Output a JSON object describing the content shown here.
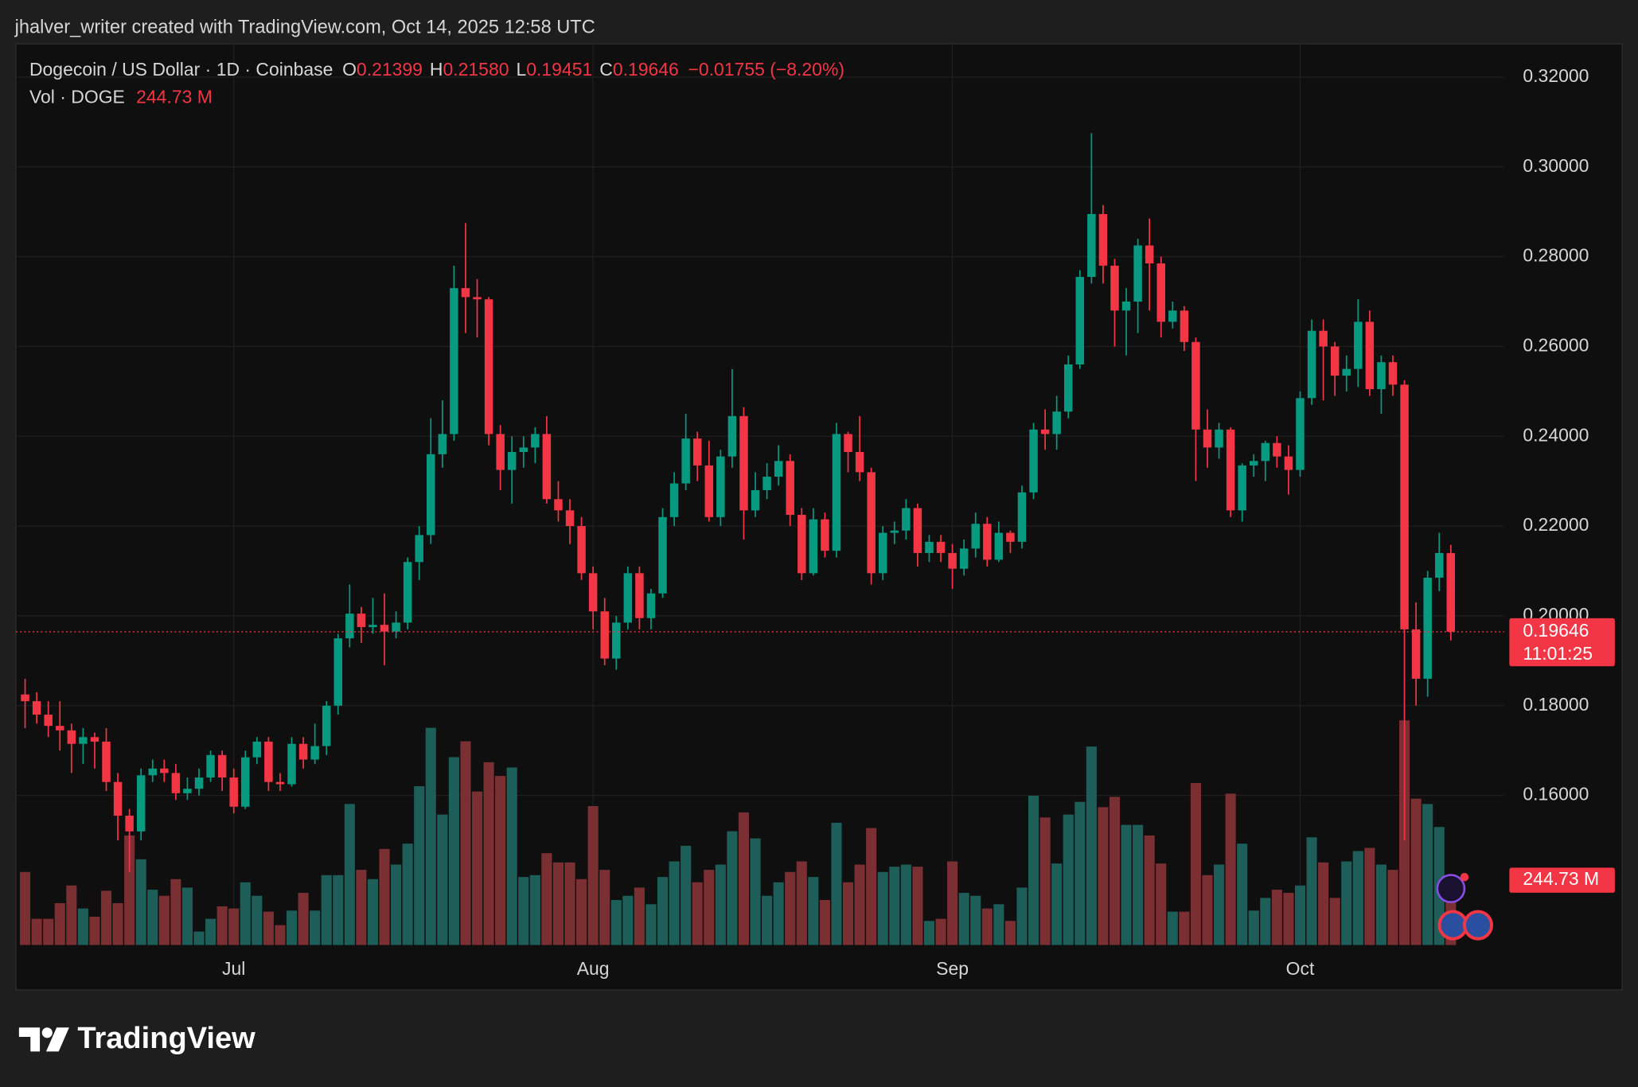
{
  "chart_data": {
    "type": "candlestick",
    "header": "jhalver_writer created with TradingView.com, Oct 14, 2025 12:58 UTC",
    "legend": {
      "symbol": "Dogecoin / US Dollar · 1D · Coinbase",
      "o": "O",
      "open": "0.21399",
      "h": "H",
      "high": "0.21580",
      "l": "L",
      "low": "0.19451",
      "c": "C",
      "close": "0.19646",
      "change": "−0.01755 (−8.20%)",
      "vol_name": "Vol · DOGE",
      "vol": "244.73 M"
    },
    "last_price_label": "0.19646",
    "countdown": "11:01:25",
    "last_volume_label": "244.73 M",
    "footer": "TradingView",
    "up_color": "#089981",
    "down_color": "#f23645",
    "volume_up_color": "#1d5e59",
    "volume_down_color": "#7a2f33",
    "grid": true,
    "xlim": [
      -0.8,
      127.6
    ],
    "xticks": [
      {
        "value": 18,
        "label": "Jul"
      },
      {
        "value": 49,
        "label": "Aug"
      },
      {
        "value": 80,
        "label": "Sep"
      },
      {
        "value": 110,
        "label": "Oct"
      }
    ],
    "ylim": [
      0.1267,
      0.3274
    ],
    "yticks": [
      {
        "value": 0.16,
        "label": "0.16000"
      },
      {
        "value": 0.18,
        "label": "0.18000"
      },
      {
        "value": 0.2,
        "label": "0.20000"
      },
      {
        "value": 0.22,
        "label": "0.22000"
      },
      {
        "value": 0.24,
        "label": "0.24000"
      },
      {
        "value": 0.26,
        "label": "0.26000"
      },
      {
        "value": 0.28,
        "label": "0.28000"
      },
      {
        "value": 0.3,
        "label": "0.30000"
      },
      {
        "value": 0.32,
        "label": "0.32000"
      }
    ],
    "vlim": [
      0,
      3406
    ],
    "open": [
      0.1825,
      0.181,
      0.178,
      0.1755,
      0.1745,
      0.1715,
      0.173,
      0.172,
      0.163,
      0.1555,
      0.152,
      0.1645,
      0.166,
      0.165,
      0.1605,
      0.1615,
      0.164,
      0.169,
      0.164,
      0.1575,
      0.1685,
      0.172,
      0.163,
      0.1625,
      0.1715,
      0.168,
      0.171,
      0.18,
      0.195,
      0.2005,
      0.1975,
      0.198,
      0.1965,
      0.1985,
      0.212,
      0.218,
      0.236,
      0.2405,
      0.273,
      0.271,
      0.2705,
      0.2405,
      0.2325,
      0.2365,
      0.2375,
      0.2405,
      0.226,
      0.2235,
      0.22,
      0.2095,
      0.201,
      0.1905,
      0.1985,
      0.2095,
      0.1995,
      0.205,
      0.222,
      0.2295,
      0.2395,
      0.2335,
      0.222,
      0.2355,
      0.2445,
      0.2235,
      0.228,
      0.231,
      0.2345,
      0.2225,
      0.2095,
      0.2215,
      0.2145,
      0.2405,
      0.2365,
      0.232,
      0.2095,
      0.2185,
      0.219,
      0.224,
      0.214,
      0.2165,
      0.214,
      0.2105,
      0.215,
      0.2205,
      0.2125,
      0.2185,
      0.2165,
      0.2275,
      0.2415,
      0.2405,
      0.2455,
      0.256,
      0.2755,
      0.2895,
      0.278,
      0.268,
      0.27,
      0.2825,
      0.2785,
      0.2655,
      0.268,
      0.261,
      0.2415,
      0.2375,
      0.2415,
      0.2235,
      0.2335,
      0.2345,
      0.2385,
      0.2355,
      0.2325,
      0.2485,
      0.2635,
      0.26,
      0.2535,
      0.255,
      0.2655,
      0.2505,
      0.2565,
      0.2515,
      0.197,
      0.186,
      0.2085,
      0.21399
    ],
    "high": [
      0.186,
      0.183,
      0.181,
      0.181,
      0.176,
      0.175,
      0.174,
      0.175,
      0.165,
      0.157,
      0.166,
      0.168,
      0.168,
      0.167,
      0.164,
      0.166,
      0.17,
      0.17,
      0.166,
      0.17,
      0.173,
      0.173,
      0.165,
      0.173,
      0.173,
      0.176,
      0.181,
      0.196,
      0.207,
      0.202,
      0.204,
      0.205,
      0.201,
      0.213,
      0.22,
      0.244,
      0.248,
      0.278,
      0.2875,
      0.275,
      0.271,
      0.2425,
      0.24,
      0.24,
      0.242,
      0.2445,
      0.23,
      0.226,
      0.222,
      0.211,
      0.204,
      0.2,
      0.211,
      0.211,
      0.206,
      0.224,
      0.232,
      0.245,
      0.241,
      0.239,
      0.237,
      0.255,
      0.2465,
      0.232,
      0.234,
      0.238,
      0.236,
      0.224,
      0.224,
      0.223,
      0.243,
      0.241,
      0.2445,
      0.233,
      0.22,
      0.221,
      0.226,
      0.225,
      0.218,
      0.218,
      0.216,
      0.217,
      0.223,
      0.222,
      0.221,
      0.219,
      0.229,
      0.243,
      0.246,
      0.249,
      0.258,
      0.277,
      0.3075,
      0.2915,
      0.2795,
      0.273,
      0.284,
      0.2885,
      0.28,
      0.27,
      0.269,
      0.262,
      0.246,
      0.243,
      0.242,
      0.234,
      0.236,
      0.239,
      0.24,
      0.238,
      0.25,
      0.266,
      0.266,
      0.261,
      0.258,
      0.2705,
      0.268,
      0.258,
      0.258,
      0.2525,
      0.203,
      0.21,
      0.2185,
      0.2158
    ],
    "low": [
      0.175,
      0.176,
      0.173,
      0.17,
      0.165,
      0.167,
      0.166,
      0.161,
      0.15,
      0.143,
      0.15,
      0.163,
      0.163,
      0.159,
      0.159,
      0.16,
      0.163,
      0.161,
      0.156,
      0.157,
      0.167,
      0.161,
      0.161,
      0.162,
      0.166,
      0.167,
      0.169,
      0.178,
      0.193,
      0.194,
      0.196,
      0.189,
      0.195,
      0.197,
      0.208,
      0.216,
      0.233,
      0.239,
      0.263,
      0.262,
      0.238,
      0.228,
      0.225,
      0.233,
      0.234,
      0.225,
      0.221,
      0.216,
      0.208,
      0.197,
      0.189,
      0.188,
      0.197,
      0.197,
      0.197,
      0.204,
      0.22,
      0.228,
      0.23,
      0.221,
      0.22,
      0.233,
      0.217,
      0.222,
      0.226,
      0.229,
      0.22,
      0.208,
      0.209,
      0.213,
      0.213,
      0.232,
      0.23,
      0.207,
      0.208,
      0.216,
      0.217,
      0.211,
      0.212,
      0.212,
      0.206,
      0.209,
      0.213,
      0.211,
      0.212,
      0.214,
      0.215,
      0.226,
      0.237,
      0.237,
      0.244,
      0.255,
      0.274,
      0.274,
      0.26,
      0.258,
      0.263,
      0.268,
      0.262,
      0.264,
      0.259,
      0.23,
      0.233,
      0.235,
      0.222,
      0.221,
      0.231,
      0.23,
      0.233,
      0.227,
      0.231,
      0.247,
      0.248,
      0.249,
      0.25,
      0.251,
      0.249,
      0.245,
      0.249,
      0.15,
      0.18,
      0.182,
      0.2055,
      0.19451
    ],
    "close": [
      0.181,
      0.178,
      0.1755,
      0.1745,
      0.1715,
      0.173,
      0.172,
      0.163,
      0.1555,
      0.152,
      0.1645,
      0.166,
      0.165,
      0.1605,
      0.1615,
      0.164,
      0.169,
      0.164,
      0.1575,
      0.1685,
      0.172,
      0.163,
      0.1625,
      0.1715,
      0.168,
      0.171,
      0.18,
      0.195,
      0.2005,
      0.1975,
      0.198,
      0.1965,
      0.1985,
      0.212,
      0.218,
      0.236,
      0.2405,
      0.273,
      0.271,
      0.2705,
      0.2405,
      0.2325,
      0.2365,
      0.2375,
      0.2405,
      0.226,
      0.2235,
      0.22,
      0.2095,
      0.201,
      0.1905,
      0.1985,
      0.2095,
      0.1995,
      0.205,
      0.222,
      0.2295,
      0.2395,
      0.2335,
      0.222,
      0.2355,
      0.2445,
      0.2235,
      0.228,
      0.231,
      0.2345,
      0.2225,
      0.2095,
      0.2215,
      0.2145,
      0.2405,
      0.2365,
      0.232,
      0.2095,
      0.2185,
      0.219,
      0.224,
      0.214,
      0.2165,
      0.214,
      0.2105,
      0.215,
      0.2205,
      0.2125,
      0.2185,
      0.2165,
      0.2275,
      0.2415,
      0.2405,
      0.2455,
      0.256,
      0.2755,
      0.2895,
      0.278,
      0.268,
      0.27,
      0.2825,
      0.2785,
      0.2655,
      0.268,
      0.261,
      0.2415,
      0.2375,
      0.2415,
      0.2235,
      0.2335,
      0.2345,
      0.2385,
      0.2355,
      0.2325,
      0.2485,
      0.2635,
      0.26,
      0.2535,
      0.255,
      0.2655,
      0.2505,
      0.2565,
      0.2515,
      0.197,
      0.186,
      0.2085,
      0.214,
      0.19646
    ],
    "volume": [
      276,
      99,
      99,
      158,
      225,
      138,
      107,
      205,
      158,
      414,
      324,
      209,
      186,
      249,
      217,
      51,
      99,
      146,
      138,
      237,
      186,
      126,
      75,
      130,
      197,
      130,
      264,
      264,
      533,
      284,
      249,
      363,
      304,
      383,
      600,
      821,
      493,
      710,
      770,
      580,
      691,
      639,
      671,
      257,
      264,
      347,
      312,
      312,
      249,
      525,
      284,
      170,
      186,
      217,
      154,
      257,
      316,
      375,
      237,
      284,
      304,
      430,
      501,
      403,
      186,
      237,
      276,
      316,
      257,
      170,
      462,
      237,
      304,
      442,
      276,
      296,
      304,
      296,
      91,
      99,
      316,
      197,
      186,
      138,
      154,
      91,
      217,
      564,
      482,
      308,
      493,
      541,
      750,
      521,
      560,
      454,
      454,
      414,
      308,
      126,
      126,
      612,
      264,
      304,
      572,
      383,
      130,
      178,
      209,
      197,
      225,
      407,
      312,
      178,
      316,
      355,
      367,
      304,
      284,
      849,
      553,
      533,
      446,
      244.73
    ]
  }
}
